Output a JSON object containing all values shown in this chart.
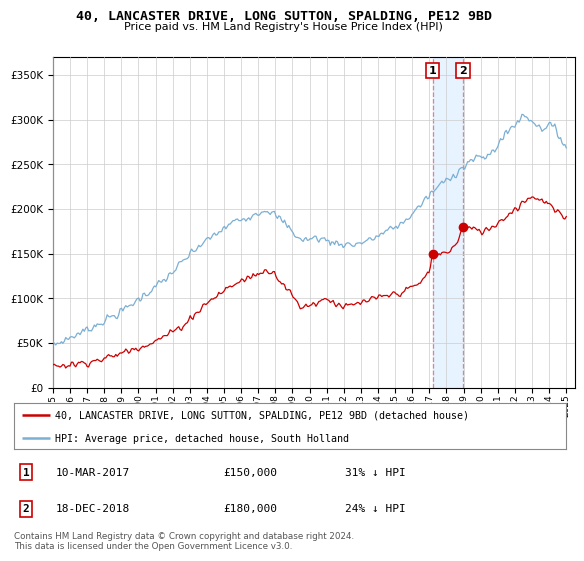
{
  "title": "40, LANCASTER DRIVE, LONG SUTTON, SPALDING, PE12 9BD",
  "subtitle": "Price paid vs. HM Land Registry's House Price Index (HPI)",
  "legend_line1": "40, LANCASTER DRIVE, LONG SUTTON, SPALDING, PE12 9BD (detached house)",
  "legend_line2": "HPI: Average price, detached house, South Holland",
  "annotation1_date": "10-MAR-2017",
  "annotation1_price": "£150,000",
  "annotation1_hpi": "31% ↓ HPI",
  "annotation2_date": "18-DEC-2018",
  "annotation2_price": "£180,000",
  "annotation2_hpi": "24% ↓ HPI",
  "footer": "Contains HM Land Registry data © Crown copyright and database right 2024.\nThis data is licensed under the Open Government Licence v3.0.",
  "hpi_color": "#7bafd4",
  "price_color": "#cc0000",
  "marker_color": "#cc0000",
  "vline_color": "#e88080",
  "shade_color": "#ddeeff",
  "background_color": "#ffffff",
  "grid_color": "#cccccc",
  "ylim": [
    0,
    370000
  ],
  "yticks": [
    0,
    50000,
    100000,
    150000,
    200000,
    250000,
    300000,
    350000
  ],
  "sale1_year": 2017.19,
  "sale1_price": 150000,
  "sale2_year": 2018.96,
  "sale2_price": 180000
}
